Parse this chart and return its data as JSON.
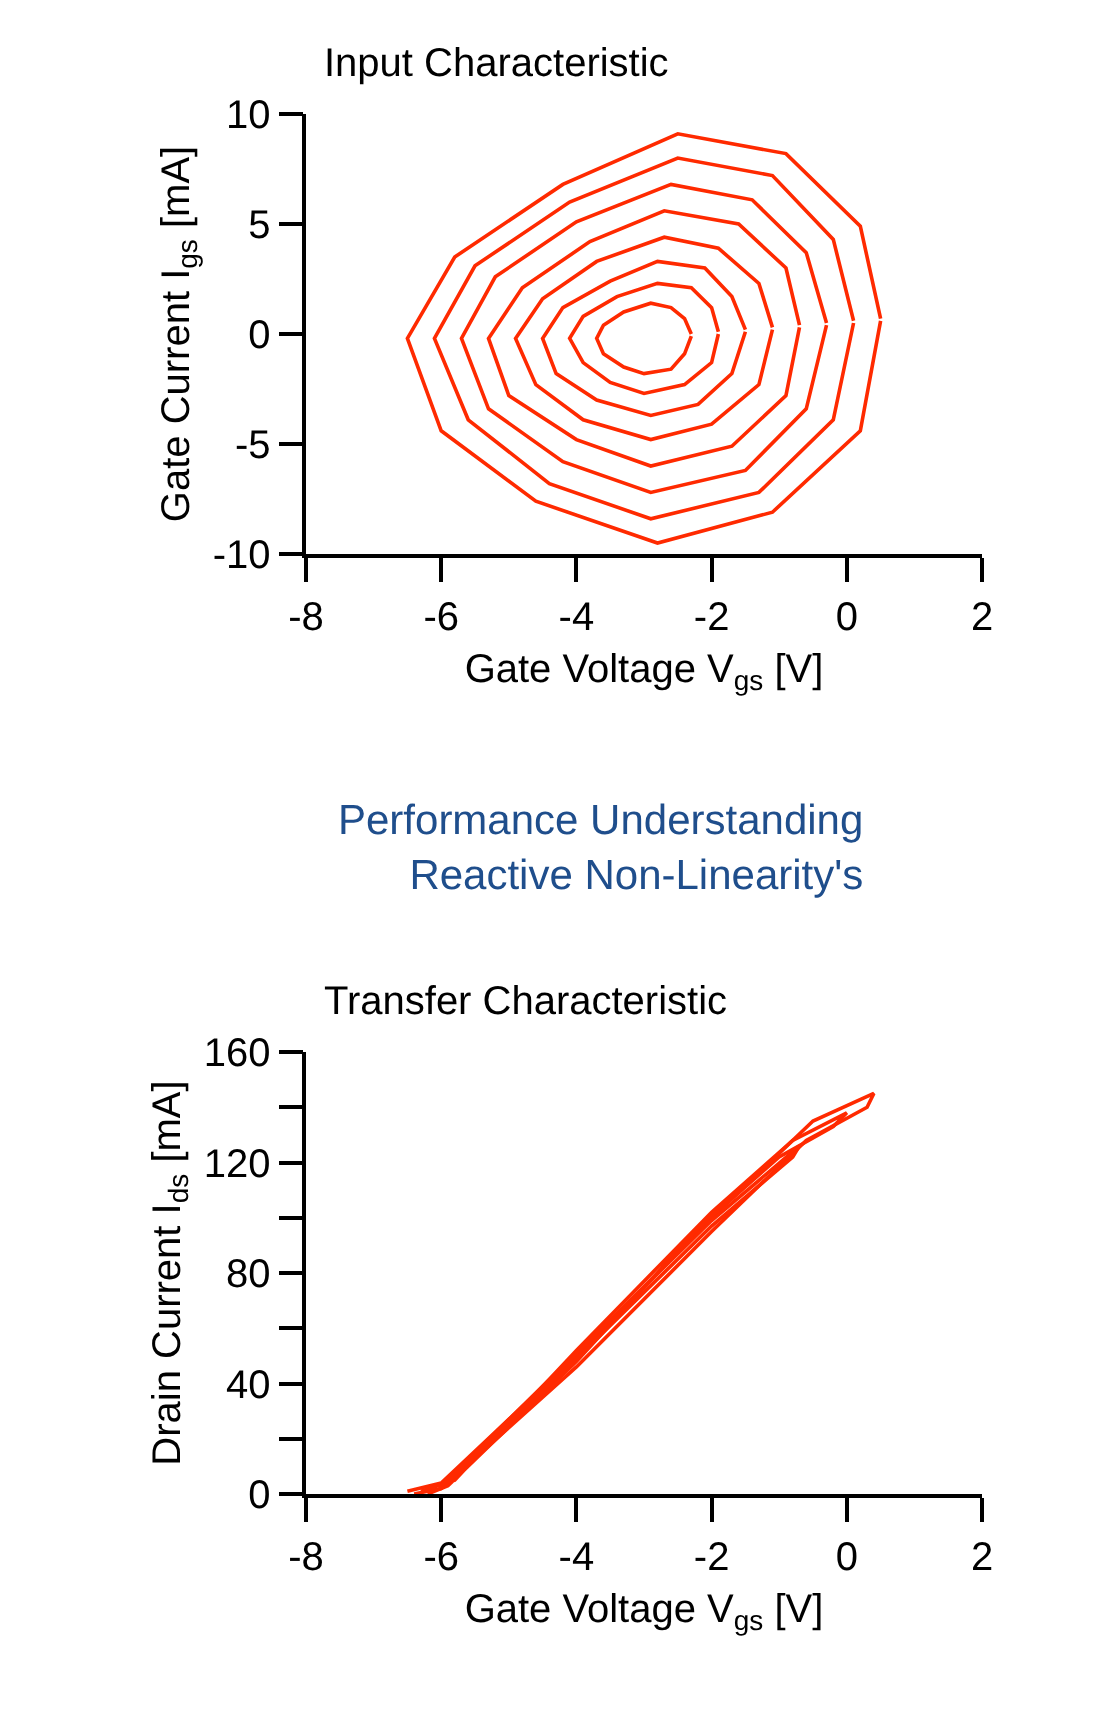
{
  "chart_data": [
    {
      "type": "line",
      "title": "Input Characteristic",
      "xlabel": "Gate Voltage V$_{gs}$ [V]",
      "ylabel": "Gate Current I$_{gs}$ [mA]",
      "annotations": [
        "Performance Understanding\nReactive Non-Linearity's"
      ],
      "xlim": [
        -8,
        2
      ],
      "xticks": [
        -8,
        -6,
        -4,
        -2,
        0,
        2
      ],
      "ylim": [
        -10,
        10
      ],
      "yticks": [
        -10,
        -5,
        0,
        5,
        10
      ],
      "marker": "none",
      "line_style": "solid",
      "series": [
        {
          "color": "#ff2a00",
          "x": [
            0.5,
            0.2,
            -0.9,
            -2.5,
            -4.2,
            -5.8,
            -6.5,
            -6.0,
            -4.6,
            -2.8,
            -1.1,
            0.2,
            0.5
          ],
          "values": [
            0.7,
            4.9,
            8.2,
            9.1,
            6.8,
            3.5,
            -0.2,
            -4.4,
            -7.6,
            -9.5,
            -8.1,
            -4.4,
            0.6
          ]
        },
        {
          "color": "#ff2a00",
          "x": [
            0.1,
            -0.2,
            -1.1,
            -2.5,
            -4.1,
            -5.5,
            -6.1,
            -5.6,
            -4.4,
            -2.9,
            -1.3,
            -0.2,
            0.1
          ],
          "values": [
            0.6,
            4.3,
            7.2,
            8.0,
            6.0,
            3.1,
            -0.2,
            -3.9,
            -6.8,
            -8.4,
            -7.2,
            -3.9,
            0.5
          ]
        },
        {
          "color": "#ff2a00",
          "x": [
            -0.3,
            -0.6,
            -1.4,
            -2.6,
            -4.0,
            -5.2,
            -5.7,
            -5.3,
            -4.2,
            -2.9,
            -1.5,
            -0.6,
            -0.3
          ],
          "values": [
            0.5,
            3.7,
            6.1,
            6.8,
            5.1,
            2.6,
            -0.2,
            -3.4,
            -5.8,
            -7.2,
            -6.2,
            -3.4,
            0.4
          ]
        },
        {
          "color": "#ff2a00",
          "x": [
            -0.7,
            -0.9,
            -1.6,
            -2.7,
            -3.8,
            -4.8,
            -5.3,
            -5.0,
            -4.0,
            -2.9,
            -1.7,
            -0.9,
            -0.7
          ],
          "values": [
            0.4,
            3.0,
            5.0,
            5.6,
            4.2,
            2.1,
            -0.2,
            -2.8,
            -4.8,
            -6.0,
            -5.1,
            -2.8,
            0.3
          ]
        },
        {
          "color": "#ff2a00",
          "x": [
            -1.1,
            -1.3,
            -1.9,
            -2.7,
            -3.7,
            -4.5,
            -4.9,
            -4.6,
            -3.9,
            -2.9,
            -2.0,
            -1.3,
            -1.1
          ],
          "values": [
            0.3,
            2.3,
            3.9,
            4.4,
            3.3,
            1.6,
            -0.2,
            -2.3,
            -3.9,
            -4.8,
            -4.1,
            -2.3,
            0.2
          ]
        },
        {
          "color": "#ff2a00",
          "x": [
            -1.5,
            -1.7,
            -2.1,
            -2.8,
            -3.5,
            -4.2,
            -4.5,
            -4.3,
            -3.7,
            -2.9,
            -2.2,
            -1.7,
            -1.5
          ],
          "values": [
            0.2,
            1.7,
            3.0,
            3.3,
            2.4,
            1.2,
            -0.2,
            -1.8,
            -3.0,
            -3.7,
            -3.2,
            -1.8,
            0.1
          ]
        },
        {
          "color": "#ff2a00",
          "x": [
            -1.9,
            -2.0,
            -2.3,
            -2.8,
            -3.4,
            -3.9,
            -4.1,
            -3.9,
            -3.5,
            -3.0,
            -2.4,
            -2.0,
            -1.9
          ],
          "values": [
            0.1,
            1.2,
            2.1,
            2.3,
            1.7,
            0.8,
            -0.2,
            -1.3,
            -2.2,
            -2.7,
            -2.3,
            -1.3,
            0.0
          ]
        },
        {
          "color": "#ff2a00",
          "x": [
            -2.3,
            -2.4,
            -2.6,
            -2.9,
            -3.3,
            -3.6,
            -3.7,
            -3.6,
            -3.3,
            -3.0,
            -2.6,
            -2.4,
            -2.3
          ],
          "values": [
            0.0,
            0.7,
            1.2,
            1.4,
            1.0,
            0.4,
            -0.2,
            -0.9,
            -1.5,
            -1.8,
            -1.6,
            -0.9,
            -0.1
          ]
        }
      ]
    },
    {
      "type": "line",
      "title": "Transfer Characteristic",
      "xlabel": "Gate Voltage V$_{gs}$ [V]",
      "ylabel": "Drain Current I$_{ds}$ [mA]",
      "xlim": [
        -8,
        2
      ],
      "xticks": [
        -8,
        -6,
        -4,
        -2,
        0,
        2
      ],
      "ylim": [
        0,
        160
      ],
      "yticks": [
        0,
        {
          "value": 20,
          "label": null
        },
        40,
        {
          "value": 60,
          "label": null
        },
        80,
        {
          "value": 100,
          "label": null
        },
        120,
        {
          "value": 140,
          "label": null
        },
        160
      ],
      "marker": "none",
      "line_style": "solid",
      "series": [
        {
          "color": "#ff2a00",
          "x": [
            -6.5,
            -6.0,
            -4,
            -2,
            -0.5,
            0.4,
            0.3,
            -0.6,
            -2,
            -4,
            -6,
            -6.4
          ],
          "values": [
            1,
            4,
            50,
            100,
            135,
            145,
            140,
            128,
            95,
            46,
            2,
            0
          ]
        },
        {
          "color": "#ff2a00",
          "x": [
            -6.3,
            -5.8,
            -4,
            -2,
            -0.8,
            0,
            -0.2,
            -1,
            -2.2,
            -4,
            -5.9,
            -6.2
          ],
          "values": [
            1,
            5,
            52,
            102,
            128,
            138,
            133,
            122,
            96,
            48,
            3,
            0
          ]
        },
        {
          "color": "#ff2a00",
          "x": [
            -6.0,
            -4,
            -2,
            -0.7,
            -0.8,
            -2,
            -4,
            -5.9
          ],
          "values": [
            3,
            51,
            99,
            126,
            122,
            97,
            49,
            4
          ]
        }
      ]
    }
  ]
}
